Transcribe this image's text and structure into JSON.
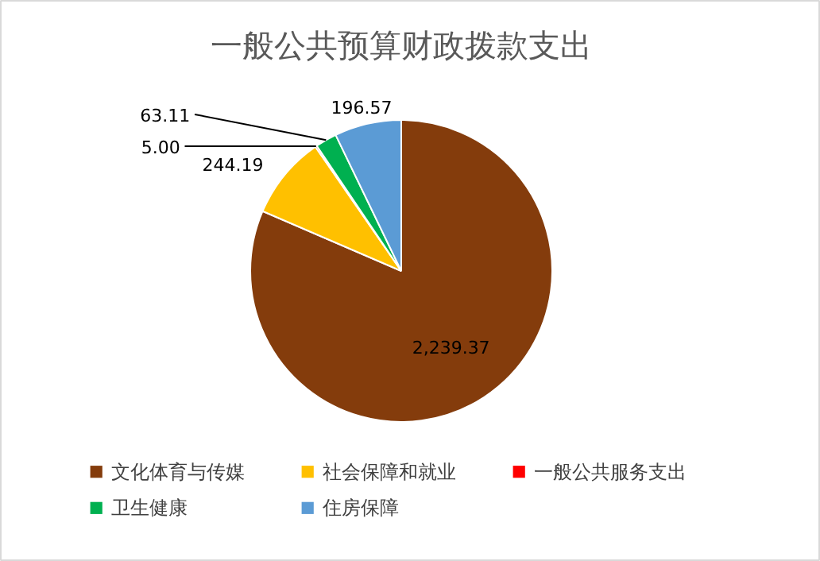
{
  "chart_data": {
    "type": "pie",
    "title": "一般公共预算财政拨款支出",
    "categories": [
      "文化体育与传媒",
      "社会保障和就业",
      "一般公共服务支出",
      "卫生健康",
      "住房保障"
    ],
    "values": [
      2239.37,
      244.19,
      5.0,
      63.11,
      196.57
    ],
    "colors": [
      "#843c0c",
      "#ffc000",
      "#ff0000",
      "#00b050",
      "#5b9bd5"
    ],
    "value_labels": [
      "2,239.37",
      "244.19",
      "5.00",
      "63.11",
      "196.57"
    ],
    "legend": "bottom"
  }
}
